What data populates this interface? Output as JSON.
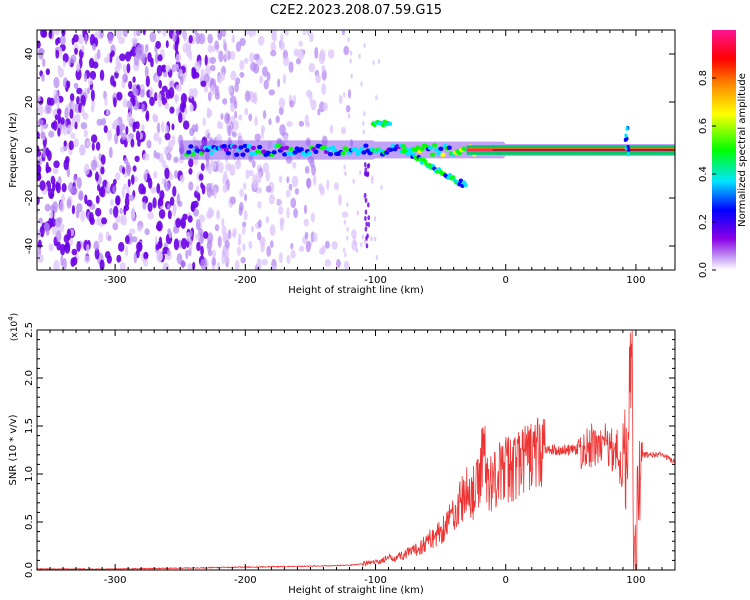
{
  "title": "C2E2.2023.208.07.59.G15",
  "chart_data": [
    {
      "type": "heatmap",
      "title": "C2E2.2023.208.07.59.G15",
      "xlabel": "Height of straight line (km)",
      "ylabel": "Frequency (Hz)",
      "xlim": [
        -360,
        130
      ],
      "ylim": [
        -50,
        50
      ],
      "x_ticks": [
        -300,
        -200,
        -100,
        0,
        100
      ],
      "y_ticks": [
        -40,
        -20,
        0,
        20,
        40
      ],
      "colorbar": {
        "label": "Normalized spectral amplitude",
        "range": [
          0,
          1
        ],
        "ticks": [
          "0.0",
          "0.2",
          "0.4",
          "0.6",
          "0.8"
        ],
        "colormap": [
          "#ffffff",
          "#8a00e6",
          "#0000ff",
          "#00e5ff",
          "#00ff00",
          "#ffff00",
          "#ff8000",
          "#ff0000",
          "#ff1493"
        ]
      },
      "features": [
        {
          "x": -350,
          "y": 0,
          "amplitude": 0.15
        },
        {
          "x": -250,
          "y": 0,
          "amplitude": 0.2
        },
        {
          "x": -200,
          "y": 0,
          "amplitude": 0.3
        },
        {
          "x": -150,
          "y": 0,
          "amplitude": 0.35
        },
        {
          "x": -105,
          "y": 0,
          "amplitude": 0.35
        },
        {
          "x": -95,
          "y": 11,
          "amplitude": 0.5
        },
        {
          "x": -70,
          "y": 0,
          "amplitude": 0.45
        },
        {
          "x": -50,
          "y": -5,
          "amplitude": 0.5
        },
        {
          "x": -40,
          "y": -14,
          "amplitude": 0.4
        },
        {
          "x": -20,
          "y": 0,
          "amplitude": 0.75
        },
        {
          "x": 0,
          "y": 0,
          "amplitude": 0.85
        },
        {
          "x": 50,
          "y": 0,
          "amplitude": 0.85
        },
        {
          "x": 93,
          "y": 0,
          "amplitude": 0.6
        },
        {
          "x": 130,
          "y": 0,
          "amplitude": 0.8
        }
      ]
    },
    {
      "type": "line",
      "xlabel": "Height of straight line (km)",
      "ylabel": "SNR (10 * v/v)",
      "y_multiplier": "(x10",
      "y_multiplier_exp": "4",
      "y_multiplier_close": ")",
      "xlim": [
        -360,
        130
      ],
      "ylim": [
        0,
        2.5
      ],
      "x_ticks": [
        -300,
        -200,
        -100,
        0,
        100
      ],
      "y_ticks": [
        "0.0",
        "0.5",
        "1.0",
        "1.5",
        "2.0",
        "2.5"
      ],
      "color": "#ee3333",
      "series": [
        {
          "x": [
            -360,
            -300,
            -250,
            -200,
            -150,
            -120,
            -100,
            -90,
            -80,
            -70,
            -60,
            -50,
            -45,
            -40,
            -35,
            -30,
            -25,
            -20,
            -17,
            -15,
            -10,
            -5,
            0,
            10,
            20,
            30,
            40,
            50,
            60,
            70,
            80,
            85,
            90,
            93,
            95,
            97,
            98,
            100,
            102,
            105,
            110,
            120,
            130
          ],
          "y": [
            0.01,
            0.01,
            0.02,
            0.03,
            0.04,
            0.05,
            0.08,
            0.12,
            0.15,
            0.2,
            0.3,
            0.4,
            0.5,
            0.6,
            0.7,
            0.8,
            0.8,
            0.9,
            1.45,
            0.9,
            0.95,
            1.0,
            1.05,
            1.1,
            1.2,
            1.25,
            1.25,
            1.25,
            1.25,
            1.3,
            1.3,
            1.25,
            1.0,
            1.2,
            2.0,
            2.5,
            0.3,
            0.05,
            1.0,
            1.2,
            1.2,
            1.2,
            1.12
          ]
        }
      ]
    }
  ]
}
